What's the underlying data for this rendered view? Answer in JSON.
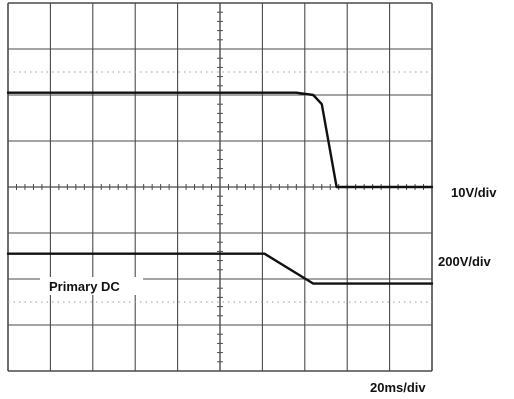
{
  "chart_data": {
    "type": "line",
    "grid": true,
    "divisions": {
      "x": 10,
      "y": 8
    },
    "xlim": [
      0,
      10
    ],
    "ylim": [
      -4,
      4
    ],
    "time_scale": "20ms/div",
    "labels": {
      "primary": "Primary DC",
      "scale_top": "10V/div",
      "scale_bottom": "200V/div",
      "timebase": "20ms/div"
    },
    "series": [
      {
        "id": "upper",
        "scale": "10V/div",
        "x": [
          0,
          6.8,
          7.2,
          7.4,
          7.75,
          8,
          10
        ],
        "y": [
          2.05,
          2.05,
          2.0,
          1.8,
          0,
          0,
          0
        ]
      },
      {
        "id": "primary_dc",
        "name": "Primary DC",
        "scale": "200V/div",
        "x": [
          0,
          6.05,
          7.2,
          10
        ],
        "y": [
          -1.45,
          -1.45,
          -2.1,
          -2.1
        ]
      }
    ],
    "colors": {
      "grid": "#4a4a4a",
      "trace": "#111111",
      "background": "#ffffff"
    }
  }
}
